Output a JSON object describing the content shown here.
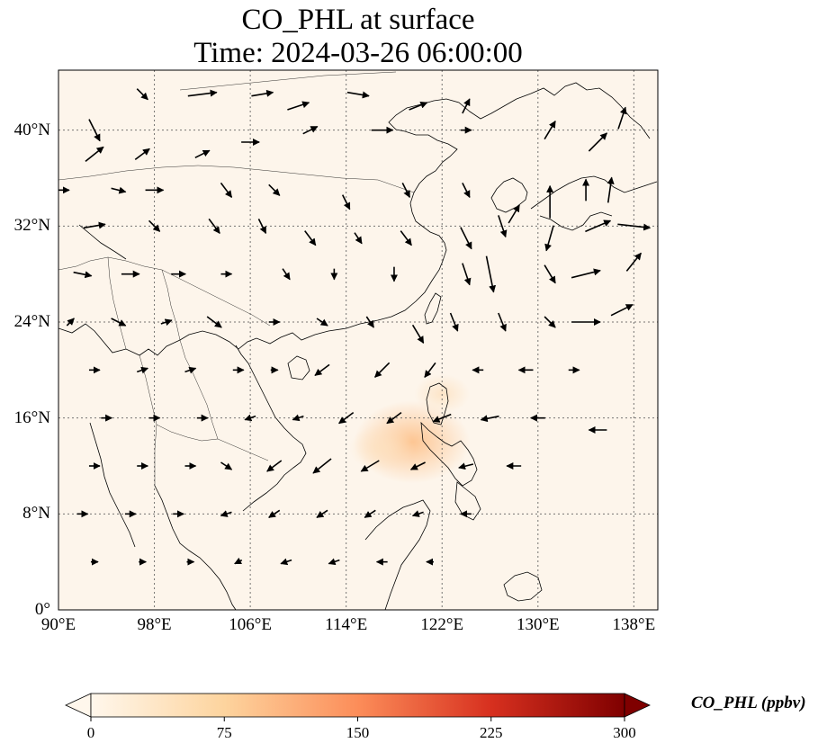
{
  "figure": {
    "title_line1": "CO_PHL at surface",
    "title_line2": "Time: 2024-03-26 06:00:00"
  },
  "map": {
    "projection": "PlateCarree",
    "lon_range": [
      90,
      140
    ],
    "lat_range": [
      0,
      45
    ],
    "background_color": "#fdf5eb",
    "coastline_color": "#000000",
    "gridline_style": "dotted",
    "lat_ticks": [
      {
        "value": 40,
        "label": "40°N"
      },
      {
        "value": 32,
        "label": "32°N"
      },
      {
        "value": 24,
        "label": "24°N"
      },
      {
        "value": 16,
        "label": "16°N"
      },
      {
        "value": 8,
        "label": "8°N"
      },
      {
        "value": 0,
        "label": "0°"
      }
    ],
    "lon_ticks": [
      {
        "value": 90,
        "label": "90°E"
      },
      {
        "value": 98,
        "label": "98°E"
      },
      {
        "value": 106,
        "label": "106°E"
      },
      {
        "value": 114,
        "label": "114°E"
      },
      {
        "value": 122,
        "label": "122°E"
      },
      {
        "value": 130,
        "label": "130°E"
      },
      {
        "value": 138,
        "label": "138°E"
      }
    ]
  },
  "colorbar": {
    "label": "CO_PHL (ppbv)",
    "colormap": "OrRd",
    "colors": [
      "#fff7ec",
      "#fdd49e",
      "#fc8d59",
      "#d7301f",
      "#7f0000"
    ],
    "range": [
      0,
      300
    ],
    "extend": "both",
    "ticks": [
      "0",
      "75",
      "150",
      "225",
      "300"
    ]
  },
  "chart_data": {
    "type": "heatmap",
    "title": "CO_PHL at surface\nTime: 2024-03-26 06:00:00",
    "variable": "CO_PHL",
    "units": "ppbv",
    "vmin": 0,
    "vmax": 300,
    "overlay": "surface wind vectors",
    "hotspots": [
      {
        "lon": 119.5,
        "lat": 14.0,
        "value": 45
      },
      {
        "lon": 117.0,
        "lat": 13.5,
        "value": 20
      },
      {
        "lon": 122.0,
        "lat": 18.0,
        "value": 15
      }
    ],
    "wind_vectors": [
      [
        93,
        40,
        0.3,
        -0.6
      ],
      [
        97,
        43,
        0.3,
        -0.3
      ],
      [
        102,
        43,
        0.8,
        0.1
      ],
      [
        107,
        43,
        0.6,
        0.1
      ],
      [
        110,
        42,
        0.6,
        0.2
      ],
      [
        115,
        43,
        0.6,
        -0.1
      ],
      [
        120,
        42,
        0.5,
        0.2
      ],
      [
        124,
        42,
        0.2,
        0.4
      ],
      [
        93,
        38,
        0.5,
        0.4
      ],
      [
        97,
        38,
        0.4,
        0.3
      ],
      [
        102,
        38,
        0.4,
        0.2
      ],
      [
        106,
        39,
        0.5,
        0.0
      ],
      [
        111,
        40,
        0.4,
        0.2
      ],
      [
        117,
        40,
        0.6,
        0.0
      ],
      [
        124,
        40,
        0.3,
        0.0
      ],
      [
        131,
        40,
        0.3,
        0.5
      ],
      [
        135,
        39,
        0.5,
        0.5
      ],
      [
        137,
        41,
        0.2,
        0.6
      ],
      [
        90,
        35,
        0.6,
        0.0
      ],
      [
        95,
        35,
        0.4,
        -0.1
      ],
      [
        98,
        35,
        0.5,
        0.0
      ],
      [
        104,
        35,
        0.3,
        -0.4
      ],
      [
        108,
        35,
        0.3,
        -0.3
      ],
      [
        114,
        34,
        0.2,
        -0.4
      ],
      [
        119,
        35,
        0.2,
        -0.4
      ],
      [
        124,
        35,
        0.2,
        -0.4
      ],
      [
        128,
        33,
        0.3,
        0.5
      ],
      [
        131,
        34,
        0.0,
        0.9
      ],
      [
        134,
        35,
        0.0,
        0.6
      ],
      [
        136,
        35,
        0.1,
        0.7
      ],
      [
        93,
        32,
        0.6,
        0.1
      ],
      [
        98,
        32,
        0.3,
        -0.3
      ],
      [
        103,
        32,
        0.3,
        -0.4
      ],
      [
        107,
        32,
        0.2,
        -0.4
      ],
      [
        111,
        31,
        0.3,
        -0.4
      ],
      [
        115,
        31,
        0.2,
        -0.3
      ],
      [
        119,
        31,
        0.3,
        -0.4
      ],
      [
        124,
        31,
        0.3,
        -0.6
      ],
      [
        127,
        32,
        0.2,
        -0.6
      ],
      [
        131,
        31,
        -0.2,
        -0.7
      ],
      [
        135,
        32,
        0.7,
        0.3
      ],
      [
        138,
        32,
        0.9,
        -0.1
      ],
      [
        92,
        28,
        0.5,
        -0.1
      ],
      [
        96,
        28,
        0.5,
        0.0
      ],
      [
        100,
        28,
        0.4,
        0.0
      ],
      [
        104,
        28,
        0.3,
        0.0
      ],
      [
        109,
        28,
        0.2,
        -0.3
      ],
      [
        113,
        28,
        0.0,
        -0.3
      ],
      [
        118,
        28,
        0.0,
        -0.4
      ],
      [
        124,
        28,
        0.2,
        -0.6
      ],
      [
        126,
        28,
        0.2,
        -1.0
      ],
      [
        131,
        28,
        0.3,
        -0.5
      ],
      [
        134,
        28,
        0.8,
        0.2
      ],
      [
        138,
        29,
        0.4,
        0.5
      ],
      [
        91,
        24,
        0.2,
        0.2
      ],
      [
        95,
        24,
        0.4,
        -0.2
      ],
      [
        99,
        24,
        0.3,
        0.1
      ],
      [
        103,
        24,
        0.4,
        -0.3
      ],
      [
        108,
        24,
        0.3,
        0.0
      ],
      [
        112,
        24,
        0.3,
        -0.2
      ],
      [
        116,
        24,
        0.2,
        -0.3
      ],
      [
        120,
        23,
        0.3,
        -0.5
      ],
      [
        123,
        24,
        0.2,
        -0.5
      ],
      [
        127,
        24,
        0.2,
        -0.5
      ],
      [
        131,
        24,
        0.3,
        -0.3
      ],
      [
        134,
        24,
        0.8,
        0.0
      ],
      [
        137,
        25,
        0.6,
        0.3
      ],
      [
        93,
        20,
        0.3,
        0.0
      ],
      [
        97,
        20,
        0.3,
        0.1
      ],
      [
        101,
        20,
        0.3,
        0.1
      ],
      [
        105,
        20,
        0.3,
        0.0
      ],
      [
        108,
        20,
        0.2,
        0.0
      ],
      [
        112,
        20,
        -0.4,
        -0.3
      ],
      [
        117,
        20,
        -0.4,
        -0.4
      ],
      [
        121,
        20,
        -0.3,
        -0.4
      ],
      [
        125,
        20,
        -0.3,
        0.0
      ],
      [
        129,
        20,
        -0.4,
        0.0
      ],
      [
        133,
        20,
        0.3,
        0.0
      ],
      [
        94,
        16,
        0.3,
        0.0
      ],
      [
        98,
        16,
        0.3,
        0.0
      ],
      [
        102,
        16,
        0.3,
        0.0
      ],
      [
        106,
        16,
        -0.3,
        -0.1
      ],
      [
        110,
        16,
        -0.3,
        -0.1
      ],
      [
        114,
        16,
        -0.4,
        -0.3
      ],
      [
        118,
        16,
        -0.4,
        -0.3
      ],
      [
        122,
        16,
        -0.5,
        -0.2
      ],
      [
        126,
        16,
        -0.5,
        -0.1
      ],
      [
        130,
        16,
        -0.4,
        0.0
      ],
      [
        135,
        15,
        -0.5,
        0.0
      ],
      [
        93,
        12,
        0.3,
        0.0
      ],
      [
        97,
        12,
        0.3,
        0.0
      ],
      [
        101,
        12,
        0.3,
        0.0
      ],
      [
        104,
        12,
        0.3,
        -0.2
      ],
      [
        108,
        12,
        -0.4,
        -0.3
      ],
      [
        112,
        12,
        -0.5,
        -0.4
      ],
      [
        116,
        12,
        -0.5,
        -0.3
      ],
      [
        120,
        12,
        -0.4,
        -0.2
      ],
      [
        124,
        12,
        -0.4,
        -0.1
      ],
      [
        128,
        12,
        -0.4,
        0.0
      ],
      [
        92,
        8,
        0.3,
        0.0
      ],
      [
        96,
        8,
        0.3,
        0.0
      ],
      [
        100,
        8,
        0.3,
        0.0
      ],
      [
        104,
        8,
        -0.3,
        -0.1
      ],
      [
        108,
        8,
        -0.3,
        -0.2
      ],
      [
        112,
        8,
        -0.3,
        -0.2
      ],
      [
        116,
        8,
        -0.3,
        -0.2
      ],
      [
        120,
        8,
        -0.3,
        -0.1
      ],
      [
        124,
        8,
        -0.3,
        0.0
      ],
      [
        93,
        4,
        0.2,
        0.0
      ],
      [
        97,
        4,
        0.2,
        0.0
      ],
      [
        101,
        4,
        0.2,
        0.0
      ],
      [
        105,
        4,
        -0.2,
        -0.1
      ],
      [
        109,
        4,
        -0.3,
        -0.1
      ],
      [
        113,
        4,
        -0.3,
        -0.1
      ],
      [
        117,
        4,
        -0.3,
        0.0
      ],
      [
        121,
        4,
        -0.2,
        0.0
      ]
    ]
  }
}
